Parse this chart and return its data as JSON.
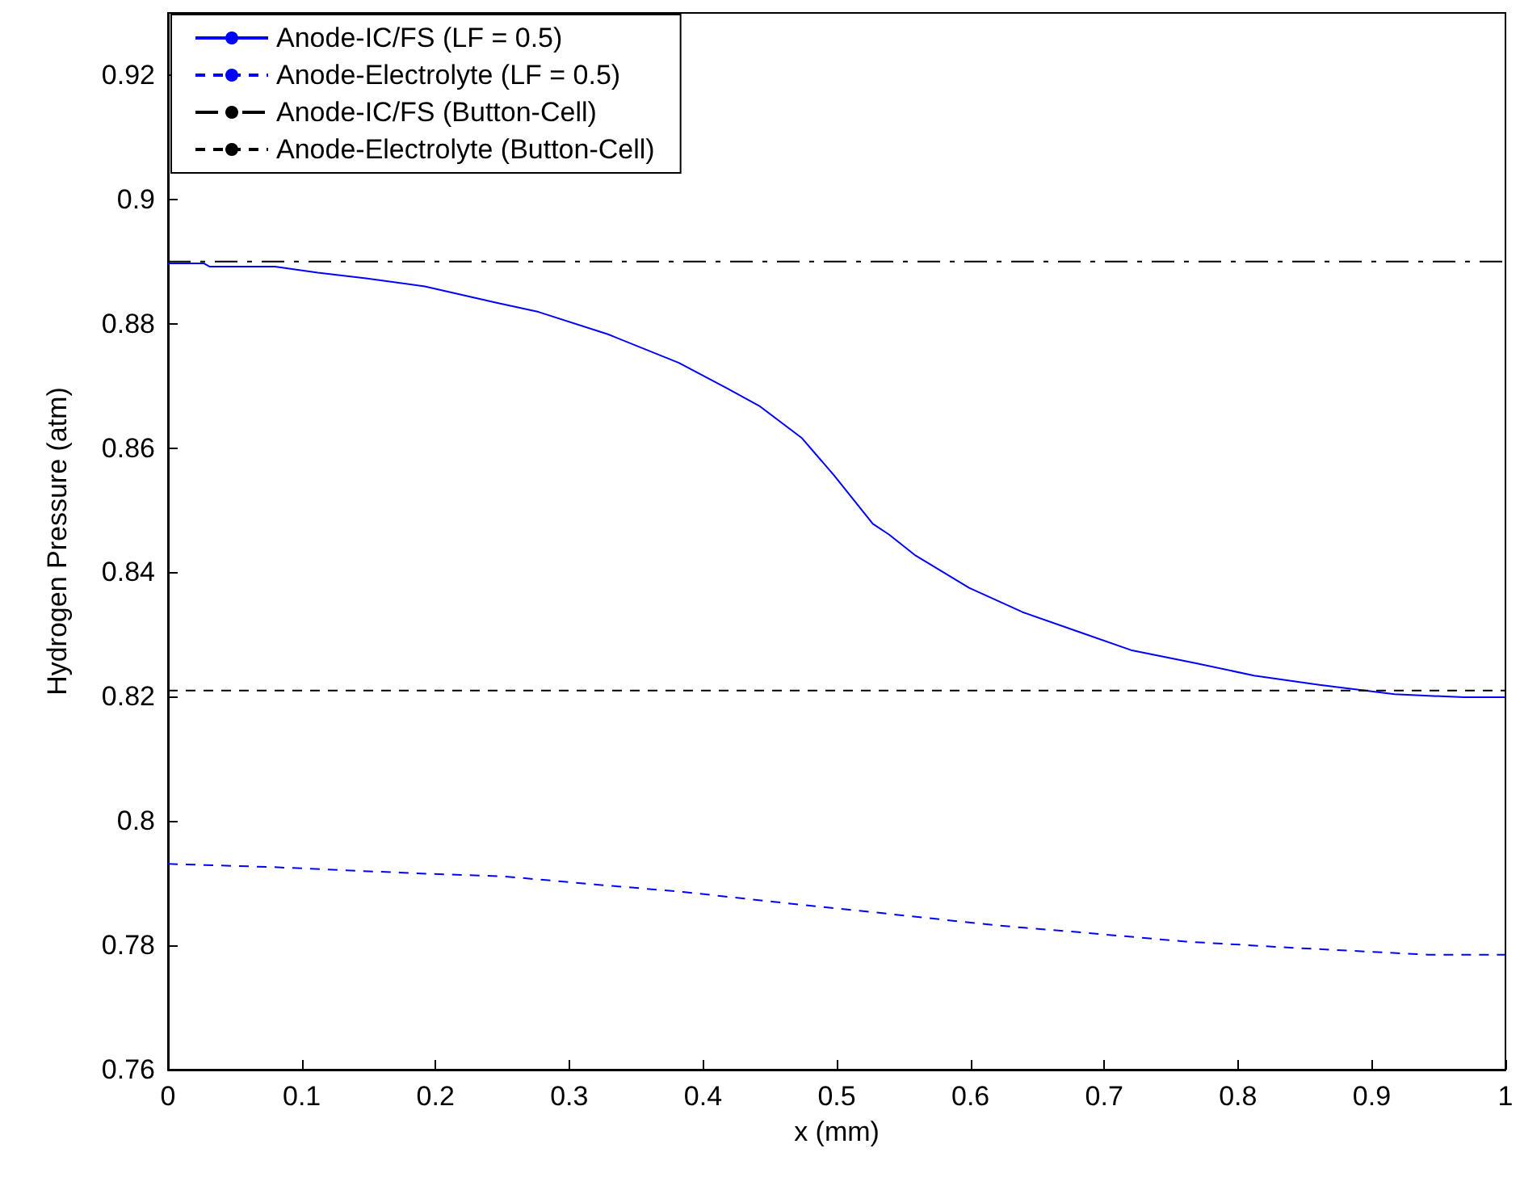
{
  "chart_data": {
    "type": "line",
    "xlabel": "x (mm)",
    "ylabel": "Hydrogen Pressure (atm)",
    "xlim": [
      0,
      1
    ],
    "xticks": [
      0,
      0.1,
      0.2,
      0.3,
      0.4,
      0.5,
      0.6,
      0.7,
      0.8,
      0.9,
      1
    ],
    "ylim": [
      0.76,
      0.93
    ],
    "yticks": [
      0.76,
      0.78,
      0.8,
      0.82,
      0.84,
      0.86,
      0.88,
      0.9,
      0.92
    ],
    "grid": false,
    "legend": "top left",
    "marker": "none",
    "series": [
      {
        "name": "Anode-IC/FS (LF = 0.5)",
        "color": "#0000ff",
        "line_style": "solid",
        "x": [
          0,
          0.027,
          0.031,
          0.08,
          0.112,
          0.148,
          0.192,
          0.245,
          0.277,
          0.329,
          0.382,
          0.418,
          0.442,
          0.474,
          0.498,
          0.527,
          0.539,
          0.559,
          0.599,
          0.639,
          0.68,
          0.72,
          0.768,
          0.812,
          0.861,
          0.917,
          0.969,
          1
        ],
        "values": [
          0.8897,
          0.8897,
          0.8892,
          0.8892,
          0.8882,
          0.8873,
          0.886,
          0.8834,
          0.8819,
          0.8783,
          0.8737,
          0.8696,
          0.8668,
          0.8616,
          0.8556,
          0.8478,
          0.8461,
          0.8427,
          0.8375,
          0.8336,
          0.8305,
          0.8275,
          0.8254,
          0.8234,
          0.8219,
          0.8204,
          0.8199,
          0.8199
        ]
      },
      {
        "name": "Anode-Electrolyte (LF = 0.5)",
        "color": "#0000ff",
        "line_style": "dashed",
        "x": [
          0,
          0.077,
          0.184,
          0.251,
          0.319,
          0.385,
          0.453,
          0.533,
          0.62,
          0.687,
          0.761,
          0.842,
          0.942,
          1
        ],
        "values": [
          0.7931,
          0.7926,
          0.7916,
          0.7911,
          0.7898,
          0.7886,
          0.787,
          0.7852,
          0.7832,
          0.782,
          0.7806,
          0.7796,
          0.7785,
          0.7785
        ]
      },
      {
        "name": "Anode-IC/FS (Button-Cell)",
        "color": "#000000",
        "line_style": "dashdot",
        "x": [
          0,
          1
        ],
        "values": [
          0.89,
          0.89
        ]
      },
      {
        "name": "Anode-Electrolyte (Button-Cell)",
        "color": "#000000",
        "line_style": "dashed",
        "x": [
          0,
          1
        ],
        "values": [
          0.821,
          0.821
        ]
      }
    ]
  }
}
